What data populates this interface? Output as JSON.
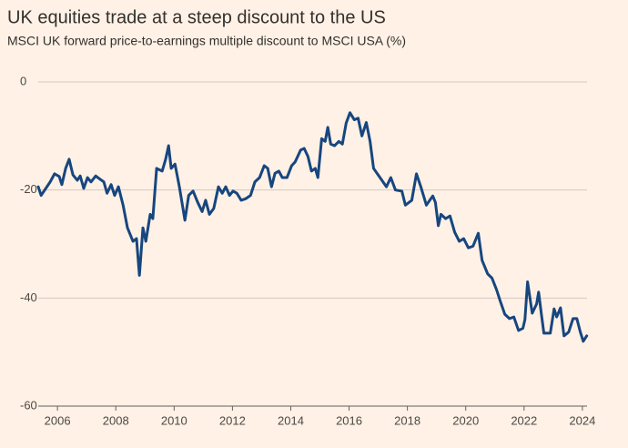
{
  "chart_data": {
    "type": "line",
    "title": "UK equities trade at a steep discount to the US",
    "subtitle": "MSCI UK forward price-to-earnings multiple discount to MSCI USA (%)",
    "x": [
      2005.34,
      2005.44,
      2005.75,
      2005.9,
      2006.06,
      2006.15,
      2006.28,
      2006.4,
      2006.53,
      2006.68,
      2006.78,
      2006.9,
      2007.03,
      2007.15,
      2007.31,
      2007.46,
      2007.59,
      2007.7,
      2007.84,
      2007.96,
      2008.09,
      2008.25,
      2008.4,
      2008.59,
      2008.71,
      2008.81,
      2008.93,
      2009.03,
      2009.18,
      2009.27,
      2009.4,
      2009.59,
      2009.71,
      2009.81,
      2009.9,
      2010.03,
      2010.18,
      2010.37,
      2010.5,
      2010.65,
      2010.81,
      2010.96,
      2011.08,
      2011.21,
      2011.36,
      2011.52,
      2011.65,
      2011.77,
      2011.9,
      2012.02,
      2012.15,
      2012.3,
      2012.46,
      2012.62,
      2012.77,
      2012.93,
      2013.09,
      2013.21,
      2013.34,
      2013.46,
      2013.59,
      2013.71,
      2013.87,
      2014.03,
      2014.15,
      2014.34,
      2014.46,
      2014.59,
      2014.71,
      2014.84,
      2014.93,
      2015.06,
      2015.18,
      2015.27,
      2015.37,
      2015.5,
      2015.65,
      2015.77,
      2015.9,
      2016.03,
      2016.18,
      2016.31,
      2016.44,
      2016.59,
      2016.72,
      2016.84,
      2017.06,
      2017.28,
      2017.43,
      2017.59,
      2017.81,
      2017.93,
      2018.15,
      2018.31,
      2018.46,
      2018.65,
      2018.87,
      2018.96,
      2019.06,
      2019.15,
      2019.31,
      2019.46,
      2019.62,
      2019.78,
      2019.93,
      2020.09,
      2020.25,
      2020.43,
      2020.56,
      2020.75,
      2020.9,
      2021.06,
      2021.18,
      2021.34,
      2021.5,
      2021.65,
      2021.81,
      2021.96,
      2022.03,
      2022.12,
      2022.28,
      2022.43,
      2022.5,
      2022.59,
      2022.68,
      2022.9,
      2023.03,
      2023.12,
      2023.25,
      2023.37,
      2023.53,
      2023.68,
      2023.81,
      2023.93,
      2024.03,
      2024.15
    ],
    "series": [
      {
        "name": "MSCI UK forward P/E discount to MSCI USA",
        "color": "#17467f",
        "values": [
          -19.4,
          -21,
          -18.5,
          -17,
          -17.5,
          -19,
          -16,
          -14.3,
          -17.2,
          -18.2,
          -17.4,
          -19.7,
          -17.7,
          -18.5,
          -17.4,
          -18,
          -18.5,
          -20.6,
          -19,
          -21,
          -19.4,
          -22.8,
          -27,
          -29.5,
          -29,
          -35.8,
          -27,
          -29.5,
          -24.5,
          -25.3,
          -16,
          -16.5,
          -14.3,
          -11.8,
          -16,
          -15.2,
          -19.4,
          -25.6,
          -21,
          -20.2,
          -22.3,
          -24,
          -21.9,
          -24.5,
          -23.4,
          -19.4,
          -20.6,
          -19.4,
          -21,
          -20.2,
          -20.6,
          -21.9,
          -21.6,
          -21,
          -18.5,
          -17.7,
          -15.5,
          -16,
          -19.4,
          -16.9,
          -16.5,
          -17.7,
          -17.7,
          -15.5,
          -14.8,
          -12.6,
          -12.3,
          -13.8,
          -16.5,
          -16,
          -17.7,
          -10.5,
          -11,
          -8.4,
          -11.5,
          -11.8,
          -11,
          -11.5,
          -7.6,
          -5.7,
          -7,
          -6.7,
          -10,
          -7.5,
          -11,
          -16,
          -17.7,
          -19.4,
          -17.7,
          -20,
          -20.2,
          -22.8,
          -21.9,
          -17,
          -19.4,
          -22.8,
          -21.1,
          -22.3,
          -26.6,
          -24.5,
          -25.3,
          -24.8,
          -27.8,
          -29.5,
          -29,
          -30.7,
          -30.4,
          -28,
          -33,
          -35.5,
          -36.3,
          -38.5,
          -40.5,
          -43,
          -43.8,
          -43.5,
          -46,
          -45.6,
          -44,
          -37,
          -42.8,
          -41.1,
          -38.9,
          -42.8,
          -46.5,
          -46.5,
          -42,
          -43.5,
          -41.8,
          -47,
          -46.3,
          -43.8,
          -43.8,
          -46.3,
          -48,
          -47
        ]
      }
    ],
    "xlim": [
      2005.34,
      2024.16
    ],
    "xticks": [
      2006,
      2008,
      2010,
      2012,
      2014,
      2016,
      2018,
      2020,
      2022,
      2024
    ],
    "ylim": [
      -60,
      0
    ],
    "yticks": [
      0,
      -20,
      -40,
      -60
    ],
    "grid": true
  }
}
